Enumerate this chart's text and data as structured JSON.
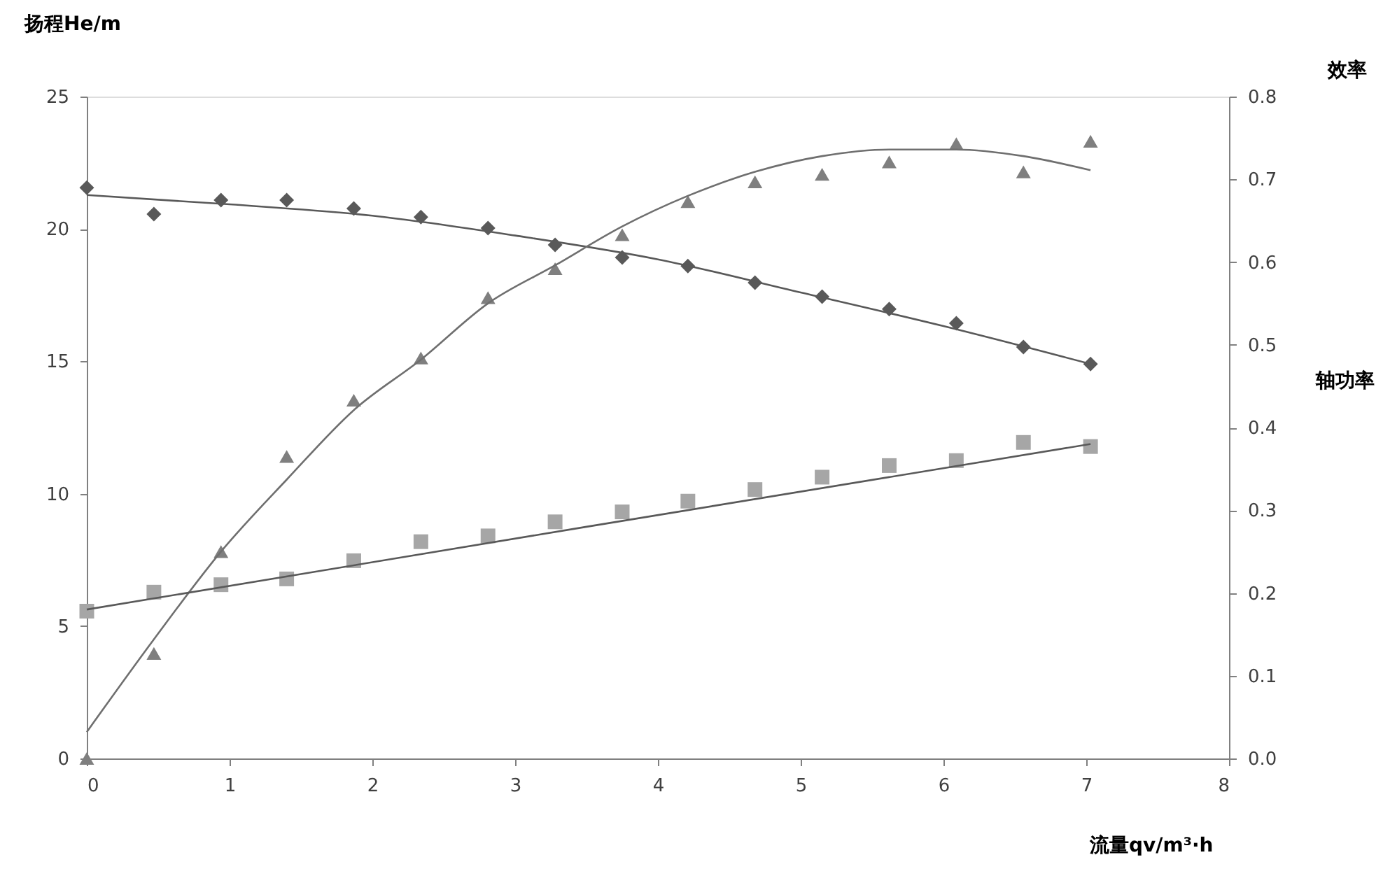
{
  "chart_data": {
    "type": "scatter",
    "xlabel": "流量qv/m³·h",
    "ylabel": "扬程He/m",
    "y2label": "效率",
    "annotations": [
      "轴功率"
    ],
    "xlim": [
      0,
      8
    ],
    "xticks": [
      0,
      1,
      2,
      3,
      4,
      5,
      6,
      7,
      8
    ],
    "ylim": [
      0,
      25
    ],
    "yticks": [
      0,
      5,
      10,
      15,
      20,
      25
    ],
    "y2lim": [
      0,
      0.8
    ],
    "y2ticks": [
      {
        "value": 0,
        "label": "0.0"
      },
      0.1,
      0.2,
      0.3,
      0.4,
      0.5,
      0.6,
      0.7,
      0.8
    ],
    "grid": false,
    "x": [
      0,
      0.47,
      0.94,
      1.4,
      1.87,
      2.34,
      2.81,
      3.28,
      3.75,
      4.21,
      4.68,
      5.15,
      5.62,
      6.09,
      6.56,
      7.03
    ],
    "series": [
      {
        "marker": "diamond",
        "color": "#595959",
        "values": [
          21.56,
          20.56,
          21.09,
          21.09,
          20.77,
          20.45,
          20.03,
          19.4,
          18.92,
          18.6,
          17.97,
          17.44,
          16.97,
          16.44,
          15.54,
          14.9
        ]
      },
      {
        "marker": "triangle",
        "axis": "y2",
        "color": "#7f7f7f",
        "values": [
          0,
          0.127,
          0.25,
          0.365,
          0.433,
          0.484,
          0.557,
          0.592,
          0.633,
          0.673,
          0.697,
          0.706,
          0.721,
          0.743,
          0.709,
          0.746
        ]
      },
      {
        "marker": "square",
        "axis": "y2",
        "color": "#a6a6a6",
        "values": [
          0.178,
          0.201,
          0.21,
          0.217,
          0.239,
          0.262,
          0.269,
          0.286,
          0.298,
          0.311,
          0.325,
          0.34,
          0.354,
          0.36,
          0.382,
          0.377
        ]
      },
      {
        "type": "line",
        "color": "#595959",
        "x": [
          0,
          1,
          2,
          3,
          4,
          5,
          6,
          7.03
        ],
        "values": [
          21.28,
          20.93,
          20.5,
          19.75,
          18.85,
          17.6,
          16.33,
          14.9
        ]
      },
      {
        "type": "line",
        "axis": "y2",
        "color": "#6f6f6f",
        "x": [
          0,
          0.47,
          0.94,
          1.4,
          1.87,
          2.34,
          2.81,
          3.28,
          3.75,
          4.21,
          4.68,
          5.15,
          5.62,
          6.09,
          6.56,
          7.03
        ],
        "values": [
          0.032,
          0.144,
          0.25,
          0.337,
          0.421,
          0.482,
          0.55,
          0.596,
          0.643,
          0.68,
          0.709,
          0.728,
          0.736,
          0.736,
          0.728,
          0.711
        ]
      },
      {
        "type": "line",
        "axis": "y2",
        "color": "#595959",
        "x": [
          0,
          3.5,
          7.03
        ],
        "values": [
          0.18,
          0.28,
          0.38
        ]
      }
    ]
  }
}
